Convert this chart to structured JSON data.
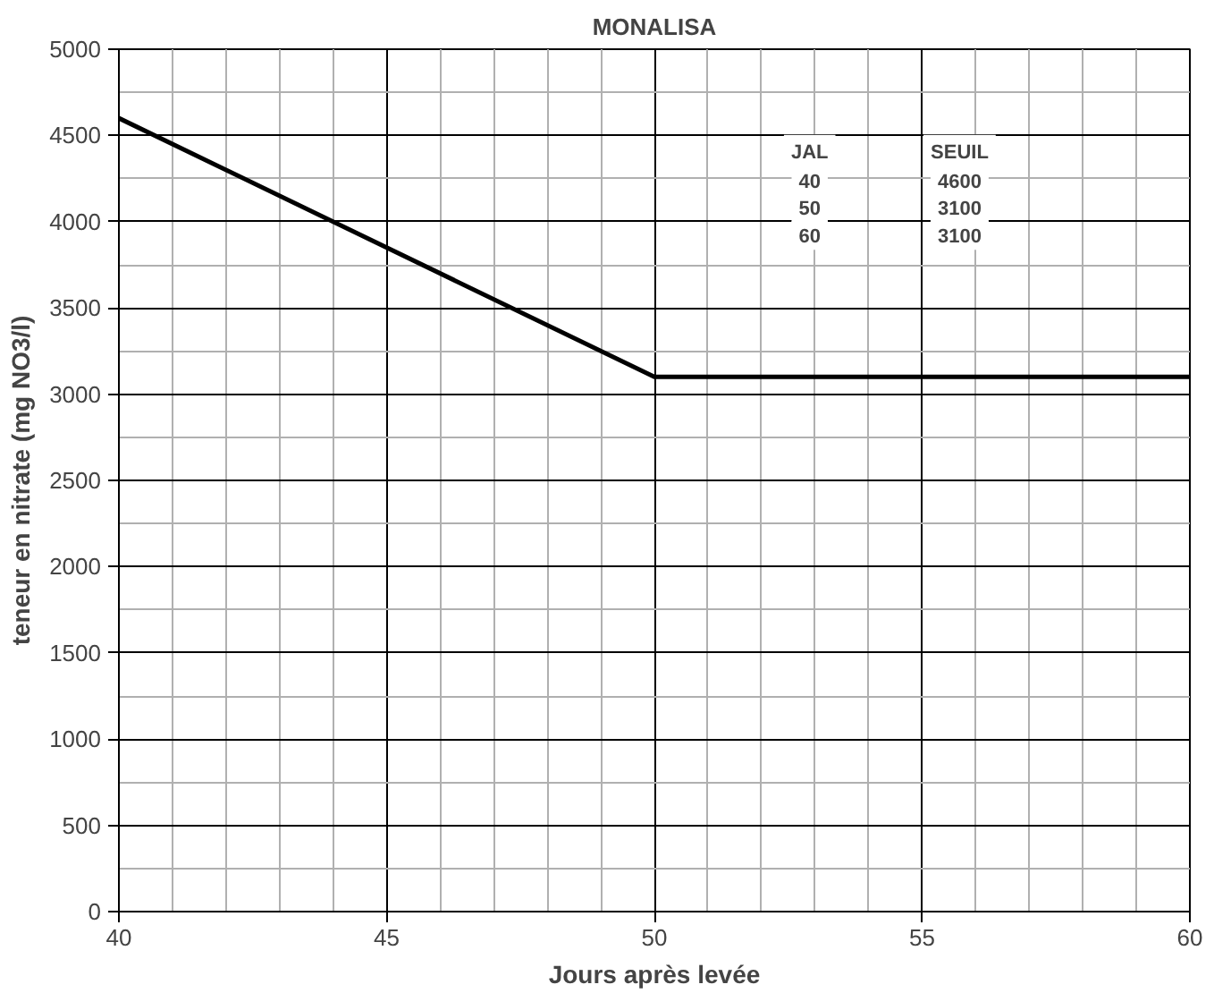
{
  "chart_data": {
    "type": "line",
    "title": "MONALISA",
    "xlabel": "Jours après levée",
    "ylabel": "teneur en nitrate (mg NO3/l)",
    "x": [
      40,
      50,
      60
    ],
    "series": [
      {
        "color": "#000000",
        "values": [
          4600,
          3100,
          3100
        ]
      }
    ],
    "xlim": [
      40,
      60
    ],
    "xticks": [
      40,
      45,
      50,
      55,
      60
    ],
    "ylim": [
      0,
      5000
    ],
    "yticks": [
      0,
      500,
      1000,
      1500,
      2000,
      2500,
      3000,
      3500,
      4000,
      4500,
      5000
    ],
    "grid": true,
    "annotations": [
      "JAL",
      "SEUIL",
      "40",
      "4600",
      "50",
      "3100",
      "60",
      "3100"
    ],
    "marker": "none",
    "line_style": "solid"
  }
}
